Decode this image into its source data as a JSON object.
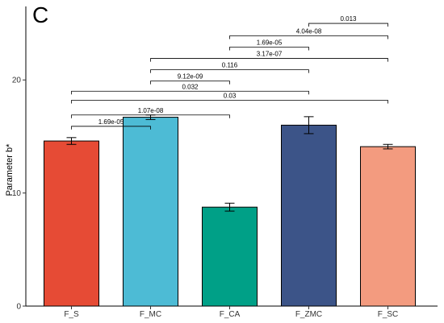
{
  "panel_label": "C",
  "chart_data": {
    "type": "bar",
    "title": "",
    "xlabel": "",
    "ylabel": "Parameter b*",
    "ylim": [
      0,
      26.5
    ],
    "yticks": [
      0,
      10,
      20
    ],
    "grid": false,
    "legend": "none",
    "categories": [
      "F_S",
      "F_MC",
      "F_CA",
      "F_ZMC",
      "F_SC"
    ],
    "values": [
      14.6,
      16.7,
      8.75,
      16.0,
      14.1
    ],
    "errors": [
      0.3,
      0.2,
      0.35,
      0.75,
      0.2
    ],
    "colors": [
      "#e64b35",
      "#4dbbd5",
      "#00a087",
      "#3c5488",
      "#f39b7f"
    ],
    "comparisons": [
      {
        "from": "F_S",
        "to": "F_MC",
        "p": "1.69e-05",
        "y": 15.9
      },
      {
        "from": "F_S",
        "to": "F_CA",
        "p": "1.07e-08",
        "y": 16.9
      },
      {
        "from": "F_S",
        "to": "F_SC",
        "p": "0.03",
        "y": 18.2
      },
      {
        "from": "F_S",
        "to": "F_ZMC",
        "p": "0.032",
        "y": 19.0
      },
      {
        "from": "F_MC",
        "to": "F_CA",
        "p": "9.12e-09",
        "y": 19.9
      },
      {
        "from": "F_MC",
        "to": "F_ZMC",
        "p": "0.116",
        "y": 20.9
      },
      {
        "from": "F_MC",
        "to": "F_SC",
        "p": "3.17e-07",
        "y": 21.9
      },
      {
        "from": "F_CA",
        "to": "F_ZMC",
        "p": "1.69e-05",
        "y": 22.9
      },
      {
        "from": "F_CA",
        "to": "F_SC",
        "p": "4.04e-08",
        "y": 23.9
      },
      {
        "from": "F_ZMC",
        "to": "F_SC",
        "p": "0.013",
        "y": 25.0
      }
    ]
  }
}
